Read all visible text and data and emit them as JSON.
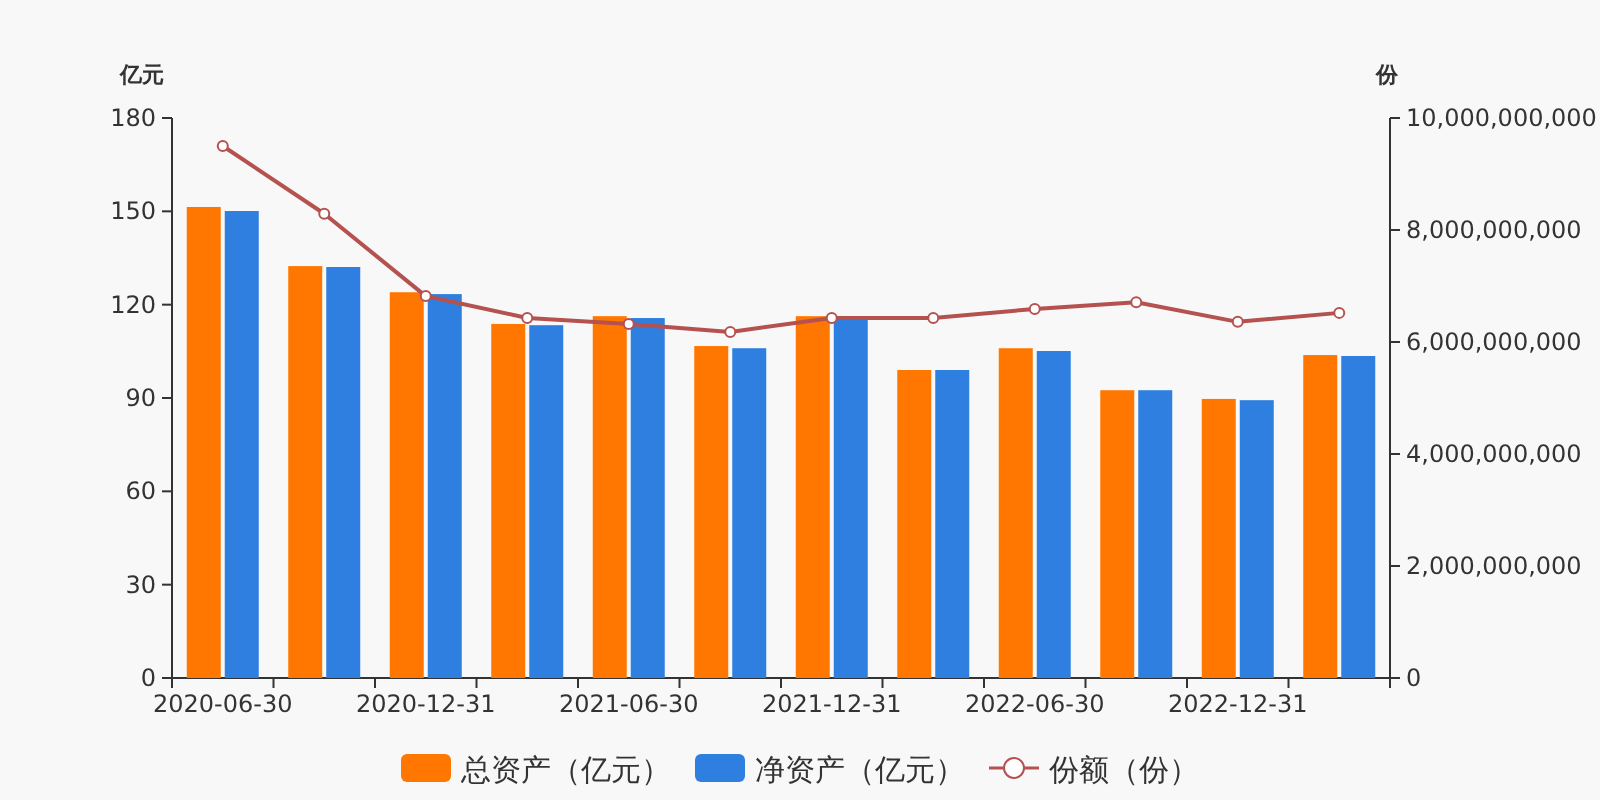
{
  "chart_data": {
    "type": "bar",
    "ylabel": "亿元",
    "y2label": "份",
    "categories": [
      "2020-06-30",
      null,
      "2020-12-31",
      null,
      "2021-06-30",
      null,
      "2021-12-31",
      null,
      "2022-06-30",
      null,
      "2022-12-31",
      null
    ],
    "series": [
      {
        "name": "总资产（亿元）",
        "color": "#ff7700",
        "values": [
          151.4,
          132.4,
          124.0,
          113.8,
          116.3,
          106.7,
          116.3,
          99.0,
          106.0,
          92.5,
          89.7,
          103.8
        ]
      },
      {
        "name": "净资产（亿元）",
        "color": "#2e7fdf",
        "values": [
          150.1,
          132.1,
          123.4,
          113.4,
          115.7,
          106.0,
          116.0,
          99.0,
          105.1,
          92.5,
          89.3,
          103.5
        ]
      },
      {
        "name": "份额（份）",
        "type": "line",
        "axis": "y2",
        "color": "#b5524f",
        "marker": "circle",
        "values": [
          9500000000,
          8290000000,
          6820000000,
          6430000000,
          6320000000,
          6180000000,
          6430000000,
          6430000000,
          6590000000,
          6710000000,
          6360000000,
          6520000000
        ]
      }
    ],
    "ylim": [
      0,
      180
    ],
    "yticks": [
      0,
      30,
      60,
      90,
      120,
      150,
      180
    ],
    "y2lim": [
      0,
      10000000000
    ],
    "y2ticks": [
      0,
      {
        "value": 2000000000,
        "label": "2,000,000,000"
      },
      {
        "value": 4000000000,
        "label": "4,000,000,000"
      },
      {
        "value": 6000000000,
        "label": "6,000,000,000"
      },
      {
        "value": 8000000000,
        "label": "8,000,000,000"
      },
      {
        "value": 10000000000,
        "label": "10,000,000,000"
      }
    ],
    "legend": "bottom"
  }
}
